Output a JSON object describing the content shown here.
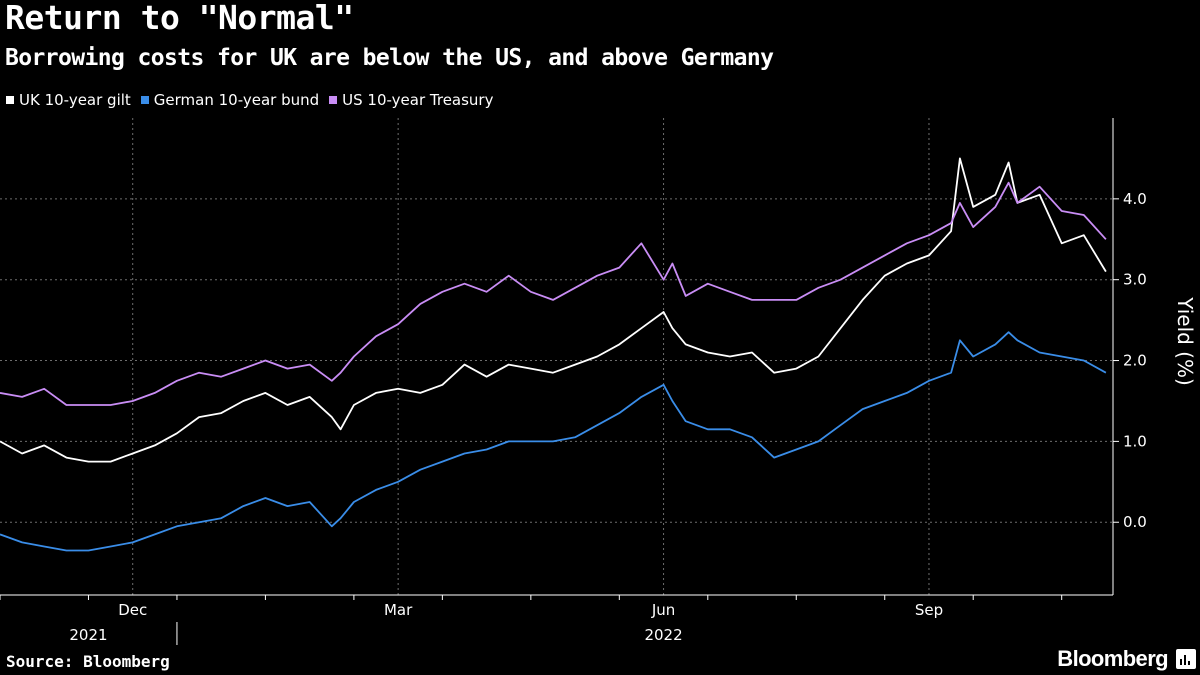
{
  "header": {
    "title": "Return to \"Normal\"",
    "subtitle": "Borrowing costs for UK are below the US, and above Germany"
  },
  "footer": {
    "source": "Source: Bloomberg",
    "brand": "Bloomberg",
    "brand_icon": "bloomberg-terminal-icon"
  },
  "chart_data": {
    "type": "line",
    "title": "Return to \"Normal\"",
    "subtitle": "Borrowing costs for UK are below the US, and above Germany",
    "xlabel": "",
    "ylabel": "Yield (%)",
    "ylim": [
      -0.9,
      5.0
    ],
    "y_ticks": [
      {
        "value": 4.0,
        "label": "4.0"
      },
      {
        "value": 3.0,
        "label": "3.0"
      },
      {
        "value": 2.0,
        "label": "2.0"
      },
      {
        "value": 1.0,
        "label": "1.0"
      },
      {
        "value": 0.0,
        "label": "0.0"
      }
    ],
    "x_domain": [
      0,
      12.58
    ],
    "x_unit": "months since 2021-11-01",
    "x_ticks": [
      {
        "value": 1.5,
        "label": "Dec"
      },
      {
        "value": 4.5,
        "label": "Mar"
      },
      {
        "value": 7.5,
        "label": "Jun"
      },
      {
        "value": 10.5,
        "label": "Sep"
      }
    ],
    "month_boundaries": [
      0,
      1,
      2,
      3,
      4,
      5,
      6,
      7,
      8,
      9,
      10,
      11,
      12
    ],
    "year_labels": [
      {
        "value": 1.0,
        "label": "2021"
      },
      {
        "value": 7.5,
        "label": "2022"
      }
    ],
    "year_divider": 2.0,
    "grid": true,
    "legend_position": "top-left",
    "series": [
      {
        "name": "UK 10-year gilt",
        "color": "#ffffff",
        "x": [
          0,
          0.25,
          0.5,
          0.75,
          1,
          1.25,
          1.5,
          1.75,
          2,
          2.25,
          2.5,
          2.75,
          3,
          3.25,
          3.5,
          3.75,
          3.85,
          4,
          4.25,
          4.5,
          4.75,
          5,
          5.25,
          5.5,
          5.75,
          6,
          6.25,
          6.5,
          6.75,
          7,
          7.25,
          7.5,
          7.6,
          7.75,
          8,
          8.25,
          8.5,
          8.75,
          9,
          9.25,
          9.5,
          9.75,
          10,
          10.25,
          10.5,
          10.75,
          10.85,
          11,
          11.25,
          11.4,
          11.5,
          11.75,
          12,
          12.25,
          12.5
        ],
        "y": [
          1.0,
          0.85,
          0.95,
          0.8,
          0.75,
          0.75,
          0.85,
          0.95,
          1.1,
          1.3,
          1.35,
          1.5,
          1.6,
          1.45,
          1.55,
          1.3,
          1.15,
          1.45,
          1.6,
          1.65,
          1.6,
          1.7,
          1.95,
          1.8,
          1.95,
          1.9,
          1.85,
          1.95,
          2.05,
          2.2,
          2.4,
          2.6,
          2.4,
          2.2,
          2.1,
          2.05,
          2.1,
          1.85,
          1.9,
          2.05,
          2.4,
          2.75,
          3.05,
          3.2,
          3.3,
          3.6,
          4.5,
          3.9,
          4.05,
          4.45,
          3.95,
          4.05,
          3.45,
          3.55,
          3.1
        ]
      },
      {
        "name": "German 10-year bund",
        "color": "#3a8de8",
        "x": [
          0,
          0.25,
          0.5,
          0.75,
          1,
          1.25,
          1.5,
          1.75,
          2,
          2.25,
          2.5,
          2.75,
          3,
          3.25,
          3.5,
          3.75,
          3.85,
          4,
          4.25,
          4.5,
          4.75,
          5,
          5.25,
          5.5,
          5.75,
          6,
          6.25,
          6.5,
          6.75,
          7,
          7.25,
          7.5,
          7.6,
          7.75,
          8,
          8.25,
          8.5,
          8.75,
          9,
          9.25,
          9.5,
          9.75,
          10,
          10.25,
          10.5,
          10.75,
          10.85,
          11,
          11.25,
          11.4,
          11.5,
          11.75,
          12,
          12.25,
          12.5
        ],
        "y": [
          -0.15,
          -0.25,
          -0.3,
          -0.35,
          -0.35,
          -0.3,
          -0.25,
          -0.15,
          -0.05,
          0.0,
          0.05,
          0.2,
          0.3,
          0.2,
          0.25,
          -0.05,
          0.05,
          0.25,
          0.4,
          0.5,
          0.65,
          0.75,
          0.85,
          0.9,
          1.0,
          1.0,
          1.0,
          1.05,
          1.2,
          1.35,
          1.55,
          1.7,
          1.5,
          1.25,
          1.15,
          1.15,
          1.05,
          0.8,
          0.9,
          1.0,
          1.2,
          1.4,
          1.5,
          1.6,
          1.75,
          1.85,
          2.25,
          2.05,
          2.2,
          2.35,
          2.25,
          2.1,
          2.05,
          2.0,
          1.85
        ]
      },
      {
        "name": "US 10-year Treasury",
        "color": "#c98df5",
        "x": [
          0,
          0.25,
          0.5,
          0.75,
          1,
          1.25,
          1.5,
          1.75,
          2,
          2.25,
          2.5,
          2.75,
          3,
          3.25,
          3.5,
          3.75,
          3.85,
          4,
          4.25,
          4.5,
          4.75,
          5,
          5.25,
          5.5,
          5.75,
          6,
          6.25,
          6.5,
          6.75,
          7,
          7.25,
          7.5,
          7.6,
          7.75,
          8,
          8.25,
          8.5,
          8.75,
          9,
          9.25,
          9.5,
          9.75,
          10,
          10.25,
          10.5,
          10.75,
          10.85,
          11,
          11.25,
          11.4,
          11.5,
          11.75,
          12,
          12.25,
          12.5
        ],
        "y": [
          1.6,
          1.55,
          1.65,
          1.45,
          1.45,
          1.45,
          1.5,
          1.6,
          1.75,
          1.85,
          1.8,
          1.9,
          2.0,
          1.9,
          1.95,
          1.75,
          1.85,
          2.05,
          2.3,
          2.45,
          2.7,
          2.85,
          2.95,
          2.85,
          3.05,
          2.85,
          2.75,
          2.9,
          3.05,
          3.15,
          3.45,
          3.0,
          3.2,
          2.8,
          2.95,
          2.85,
          2.75,
          2.75,
          2.75,
          2.9,
          3.0,
          3.15,
          3.3,
          3.45,
          3.55,
          3.7,
          3.95,
          3.65,
          3.9,
          4.2,
          3.95,
          4.15,
          3.85,
          3.8,
          3.5
        ]
      }
    ]
  }
}
